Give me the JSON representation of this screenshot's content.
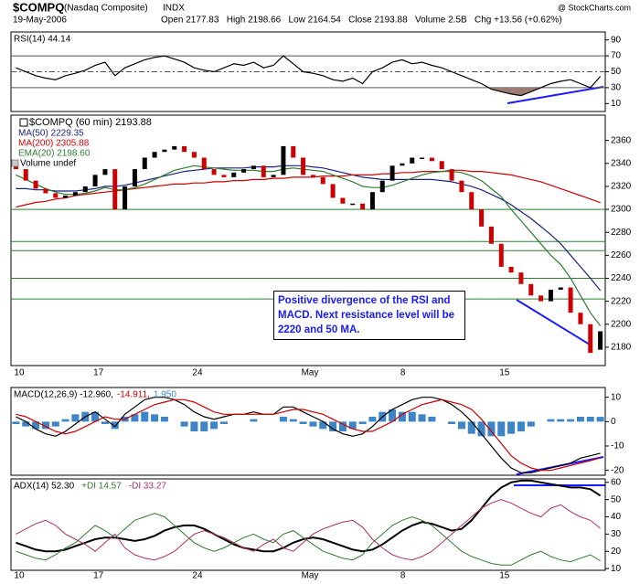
{
  "header": {
    "symbol": "$COMPQ",
    "name": "(Nasdaq Composite)",
    "exchange": "INDX",
    "date": "19-May-2006",
    "quote": "Open 2177.83   High 2198.66   Low 2164.54   Close 2193.88   Volume 2.5B   Chg +13.56 (+0.62%)",
    "watermark": "@ StockCharts.com"
  },
  "chart_data": [
    {
      "type": "line",
      "ylim": [
        0,
        100
      ],
      "yticks": [
        10,
        30,
        50,
        70,
        90
      ],
      "hlines": [
        {
          "value": 70
        },
        {
          "value": 50,
          "dashed": true
        },
        {
          "value": 30
        }
      ],
      "oversold_fill": "#9c7b73",
      "series": [
        {
          "name": "RSI(14) 44.14",
          "color": "#000000",
          "values": [
            55,
            50,
            45,
            42,
            40,
            45,
            48,
            52,
            58,
            62,
            45,
            55,
            60,
            65,
            68,
            70,
            66,
            62,
            55,
            52,
            50,
            55,
            60,
            58,
            62,
            55,
            58,
            70,
            60,
            50,
            48,
            45,
            40,
            38,
            42,
            35,
            50,
            55,
            62,
            65,
            60,
            62,
            58,
            55,
            50,
            45,
            40,
            35,
            28,
            25,
            22,
            20,
            25,
            30,
            35,
            38,
            40,
            35,
            30,
            44.14
          ]
        }
      ]
    },
    {
      "type": "candlestick",
      "name": "$COMPQ (60 min) 2193.88",
      "extra_legend": "Volume undef",
      "categories": [
        "10",
        null,
        null,
        null,
        null,
        null,
        null,
        null,
        "17",
        null,
        null,
        null,
        null,
        null,
        null,
        null,
        null,
        null,
        "24",
        null,
        null,
        null,
        null,
        null,
        null,
        null,
        null,
        null,
        null,
        "May",
        null,
        null,
        null,
        null,
        null,
        null,
        null,
        null,
        null,
        "8",
        null,
        null,
        null,
        null,
        null,
        null,
        null,
        null,
        null,
        "15",
        null,
        null,
        null,
        null,
        null,
        null,
        null,
        null,
        null,
        null
      ],
      "ylim": [
        2164,
        2382
      ],
      "yticks": [
        2180,
        2200,
        2220,
        2240,
        2260,
        2280,
        2300,
        2320,
        2340,
        2360
      ],
      "up_color": "#000000",
      "down_color": "#cc0000",
      "hlines": [
        {
          "value": 2300,
          "color": "#2e7d32"
        },
        {
          "value": 2272,
          "color": "#2e7d32"
        },
        {
          "value": 2264,
          "color": "#2e7d32"
        },
        {
          "value": 2240,
          "color": "#2e7d32"
        },
        {
          "value": 2222,
          "color": "#2e7d32"
        }
      ],
      "open": [
        2338,
        2335,
        2325,
        2318,
        2314,
        2310,
        2312,
        2315,
        2320,
        2330,
        2335,
        2300,
        2320,
        2335,
        2345,
        2350,
        2352,
        2355,
        2350,
        2345,
        2335,
        2330,
        2328,
        2332,
        2335,
        2338,
        2328,
        2330,
        2355,
        2345,
        2330,
        2328,
        2322,
        2310,
        2305,
        2305,
        2300,
        2315,
        2325,
        2338,
        2340,
        2345,
        2345,
        2342,
        2335,
        2325,
        2315,
        2300,
        2285,
        2270,
        2250,
        2245,
        2235,
        2225,
        2220,
        2230,
        2232,
        2210,
        2200,
        2177.83
      ],
      "close": [
        2335,
        2325,
        2318,
        2314,
        2310,
        2312,
        2315,
        2320,
        2330,
        2335,
        2300,
        2320,
        2335,
        2345,
        2350,
        2352,
        2355,
        2350,
        2345,
        2335,
        2330,
        2328,
        2332,
        2335,
        2338,
        2328,
        2330,
        2355,
        2345,
        2330,
        2328,
        2322,
        2310,
        2305,
        2305,
        2300,
        2315,
        2325,
        2338,
        2340,
        2345,
        2345,
        2342,
        2335,
        2325,
        2315,
        2300,
        2285,
        2270,
        2250,
        2245,
        2235,
        2225,
        2220,
        2230,
        2232,
        2210,
        2200,
        2175,
        2193.88
      ],
      "series": [
        {
          "name": "MA(50) 2229.35",
          "color": "#1a237e",
          "values": [
            2318,
            2318,
            2317,
            2317,
            2316,
            2316,
            2316,
            2317,
            2318,
            2320,
            2320,
            2321,
            2323,
            2325,
            2327,
            2329,
            2331,
            2333,
            2334,
            2335,
            2336,
            2336,
            2336,
            2336,
            2337,
            2337,
            2337,
            2338,
            2338,
            2338,
            2337,
            2336,
            2334,
            2332,
            2330,
            2328,
            2327,
            2326,
            2326,
            2326,
            2326,
            2326,
            2326,
            2325,
            2324,
            2322,
            2320,
            2317,
            2313,
            2309,
            2304,
            2298,
            2292,
            2285,
            2278,
            2270,
            2260,
            2250,
            2240,
            2229.35
          ]
        },
        {
          "name": "MA(200) 2305.88",
          "color": "#cc0000",
          "values": [
            2302,
            2304,
            2306,
            2307,
            2309,
            2310,
            2312,
            2313,
            2314,
            2315,
            2316,
            2317,
            2318,
            2319,
            2320,
            2321,
            2322,
            2322,
            2323,
            2323,
            2324,
            2324,
            2325,
            2325,
            2326,
            2326,
            2327,
            2327,
            2328,
            2328,
            2328,
            2329,
            2329,
            2329,
            2330,
            2330,
            2330,
            2331,
            2331,
            2332,
            2332,
            2333,
            2333,
            2333,
            2334,
            2334,
            2333,
            2333,
            2332,
            2331,
            2330,
            2328,
            2326,
            2324,
            2321,
            2318,
            2315,
            2312,
            2309,
            2305.88
          ]
        },
        {
          "name": "EMA(20) 2198.60",
          "color": "#2e7d32",
          "values": [
            2330,
            2326,
            2322,
            2318,
            2315,
            2313,
            2313,
            2314,
            2316,
            2319,
            2317,
            2317,
            2319,
            2322,
            2326,
            2330,
            2334,
            2336,
            2338,
            2337,
            2336,
            2335,
            2334,
            2334,
            2334,
            2333,
            2333,
            2335,
            2336,
            2335,
            2334,
            2333,
            2330,
            2327,
            2324,
            2320,
            2319,
            2319,
            2321,
            2324,
            2327,
            2330,
            2332,
            2333,
            2333,
            2332,
            2329,
            2325,
            2318,
            2311,
            2300,
            2290,
            2280,
            2270,
            2260,
            2252,
            2240,
            2225,
            2210,
            2198.6
          ]
        }
      ],
      "annotation": "Positive divergence of the RSI and MACD. Next resistance level will be 2220 and 50 MA."
    },
    {
      "type": "combo",
      "ylim": [
        -22,
        14
      ],
      "yticks": [
        -20,
        -10,
        0,
        10
      ],
      "series": [
        {
          "name": "MACD(12,26,9) -12.960,",
          "color": "#000000",
          "style": "line",
          "values": [
            2,
            0,
            -3,
            -5,
            -6,
            -4,
            -1,
            2,
            4,
            1,
            -2,
            3,
            6,
            9,
            10,
            10,
            9,
            7,
            4,
            2,
            1,
            2,
            3,
            3,
            4,
            3,
            3,
            6,
            6,
            4,
            2,
            0,
            -3,
            -5,
            -6,
            -5,
            -2,
            2,
            5,
            7,
            9,
            10,
            10,
            9,
            7,
            4,
            0,
            -5,
            -10,
            -15,
            -19,
            -21,
            -21,
            -20,
            -19,
            -18,
            -17,
            -15,
            -14,
            -12.96
          ]
        },
        {
          "name": "-14.911,",
          "color": "#cc0000",
          "style": "line",
          "values": [
            3,
            2,
            0,
            -2,
            -4,
            -5,
            -4,
            -2,
            0,
            2,
            1,
            1,
            3,
            5,
            7,
            8,
            9,
            9,
            8,
            6,
            4,
            3,
            3,
            3,
            3,
            3,
            3,
            4,
            5,
            5,
            4,
            3,
            1,
            -1,
            -3,
            -4,
            -4,
            -2,
            0,
            3,
            5,
            7,
            8,
            9,
            8,
            7,
            5,
            1,
            -4,
            -9,
            -14,
            -17,
            -19,
            -20,
            -20,
            -19,
            -18,
            -17,
            -16,
            -14.911
          ]
        },
        {
          "name": "1.950",
          "color": "#3d85c6",
          "style": "bar",
          "values": [
            -1,
            -2,
            -3,
            -3,
            -2,
            1,
            3,
            4,
            4,
            -1,
            -3,
            2,
            3,
            4,
            3,
            2,
            0,
            -2,
            -4,
            -4,
            -3,
            -1,
            0,
            0,
            1,
            0,
            0,
            2,
            1,
            -1,
            -2,
            -3,
            -4,
            -4,
            -3,
            -1,
            2,
            4,
            5,
            4,
            4,
            3,
            2,
            0,
            -1,
            -3,
            -5,
            -6,
            -6,
            -6,
            -5,
            -4,
            -2,
            0,
            1,
            1,
            1,
            2,
            2,
            1.95
          ]
        }
      ]
    },
    {
      "type": "line",
      "ylim": [
        9,
        62
      ],
      "yticks": [
        10,
        20,
        30,
        40,
        50,
        60
      ],
      "series": [
        {
          "name": "ADX(14) 52.30",
          "color": "#000000",
          "width": 2,
          "values": [
            25,
            23,
            21,
            20,
            20,
            21,
            23,
            25,
            27,
            28,
            28,
            27,
            26,
            27,
            29,
            32,
            34,
            35,
            35,
            33,
            30,
            27,
            24,
            22,
            21,
            20,
            20,
            22,
            25,
            27,
            28,
            27,
            25,
            23,
            21,
            20,
            21,
            24,
            28,
            32,
            35,
            37,
            36,
            34,
            32,
            33,
            38,
            45,
            52,
            57,
            60,
            61,
            61,
            60,
            59,
            58,
            57,
            57,
            56,
            52.3
          ]
        },
        {
          "name": "+DI 14.57",
          "color": "#2e7d32",
          "width": 1,
          "values": [
            20,
            18,
            16,
            15,
            18,
            22,
            25,
            30,
            35,
            32,
            28,
            33,
            38,
            40,
            42,
            40,
            35,
            30,
            25,
            22,
            20,
            22,
            25,
            28,
            30,
            27,
            25,
            30,
            32,
            28,
            24,
            20,
            18,
            16,
            15,
            18,
            25,
            30,
            35,
            38,
            40,
            38,
            35,
            30,
            25,
            20,
            17,
            15,
            13,
            12,
            12,
            15,
            18,
            20,
            17,
            15,
            14,
            16,
            18,
            14.57
          ]
        },
        {
          "name": "-DI 33.27",
          "color": "#b03060",
          "width": 1,
          "values": [
            30,
            33,
            36,
            38,
            35,
            30,
            27,
            24,
            20,
            25,
            30,
            22,
            18,
            16,
            15,
            17,
            20,
            25,
            30,
            32,
            30,
            28,
            25,
            22,
            20,
            24,
            27,
            22,
            20,
            25,
            30,
            33,
            35,
            37,
            38,
            34,
            27,
            22,
            18,
            16,
            15,
            17,
            20,
            25,
            30,
            35,
            40,
            45,
            48,
            50,
            48,
            45,
            42,
            40,
            45,
            47,
            43,
            40,
            38,
            33.27
          ]
        }
      ]
    }
  ]
}
